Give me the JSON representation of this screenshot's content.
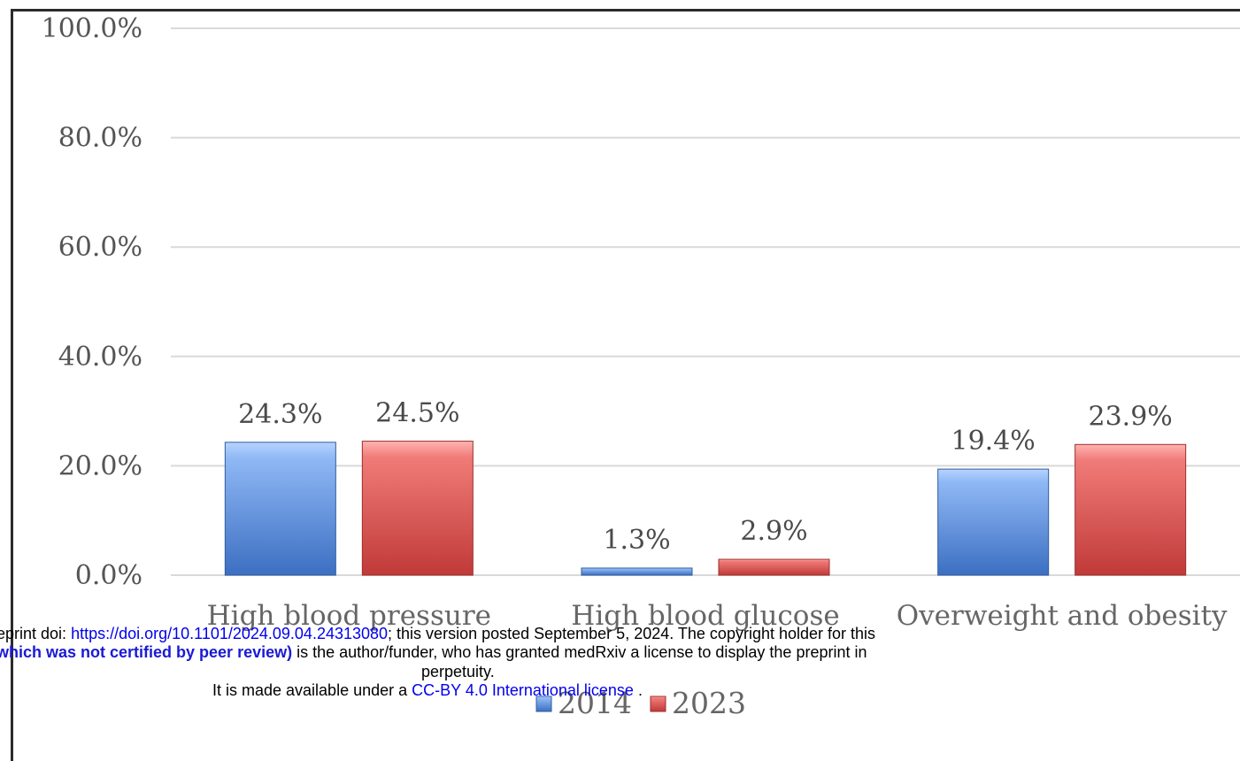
{
  "chart_data": {
    "type": "bar",
    "categories": [
      "High blood pressure",
      "High blood glucose",
      "Overweight and obesity"
    ],
    "series": [
      {
        "name": "2014",
        "values": [
          24.3,
          1.3,
          19.4
        ],
        "labels": [
          "24.3%",
          "1.3%",
          "19.4%"
        ],
        "color": "#5b8fd9"
      },
      {
        "name": "2023",
        "values": [
          24.5,
          2.9,
          23.9
        ],
        "labels": [
          "24.5%",
          "2.9%",
          "23.9%"
        ],
        "color": "#d9504f"
      }
    ],
    "yticks": [
      "0.0%",
      "20.0%",
      "40.0%",
      "60.0%",
      "80.0%",
      "100.0%"
    ],
    "ylim": [
      0,
      100
    ],
    "grid": true,
    "legend_position": "bottom-center"
  },
  "preprint_notice": {
    "line1_prefix": "eprint doi: ",
    "doi_link": "https://doi.org/10.1101/2024.09.04.24313080",
    "line1_suffix": "; this version posted September 5, 2024. The copyright holder for this",
    "line2_bold": "which was not certified by peer review)",
    "line2_rest": " is the author/funder, who has granted medRxiv a license to display the preprint in",
    "line3": "perpetuity.",
    "line4_prefix": "It is made available under a ",
    "license_link": "CC-BY 4.0 International license",
    "line4_suffix": " ."
  }
}
